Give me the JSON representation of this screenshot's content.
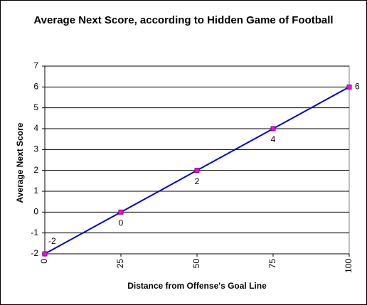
{
  "chart_data": {
    "type": "line",
    "title": "Average Next Score, according to Hidden Game of Football",
    "x_label": "Distance from Offense's Goal Line",
    "y_label": "Average Next Score",
    "x": [
      0,
      25,
      50,
      75,
      100
    ],
    "values": [
      -2,
      0,
      2,
      4,
      6
    ],
    "color": "#0000cc",
    "marker_color": "#ff00ff",
    "xlim": [
      0,
      100
    ],
    "xticks": [
      0,
      25,
      50,
      75,
      100
    ],
    "ylim": [
      -2,
      7
    ],
    "yticks": [
      -2,
      -1,
      0,
      1,
      2,
      3,
      4,
      5,
      6,
      7
    ],
    "grid": true
  }
}
